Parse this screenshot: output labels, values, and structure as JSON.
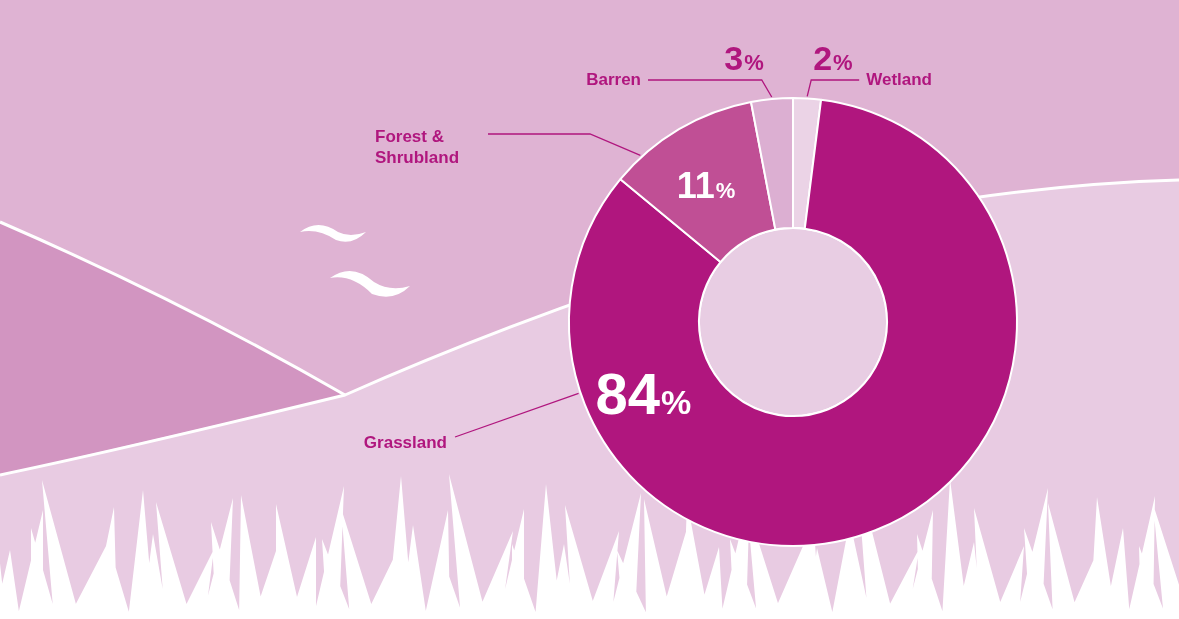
{
  "chart_data": {
    "type": "doughnut",
    "categories": [
      "Wetland",
      "Grassland",
      "Forest & Shrubland",
      "Barren"
    ],
    "values": [
      2,
      84,
      11,
      3
    ],
    "value_labels": [
      "2%",
      "84%",
      "11%",
      "3%"
    ],
    "colors": [
      "#ebd3e6",
      "#b0167e",
      "#c04f95",
      "#dcafd2"
    ],
    "data_labels": true
  }
}
